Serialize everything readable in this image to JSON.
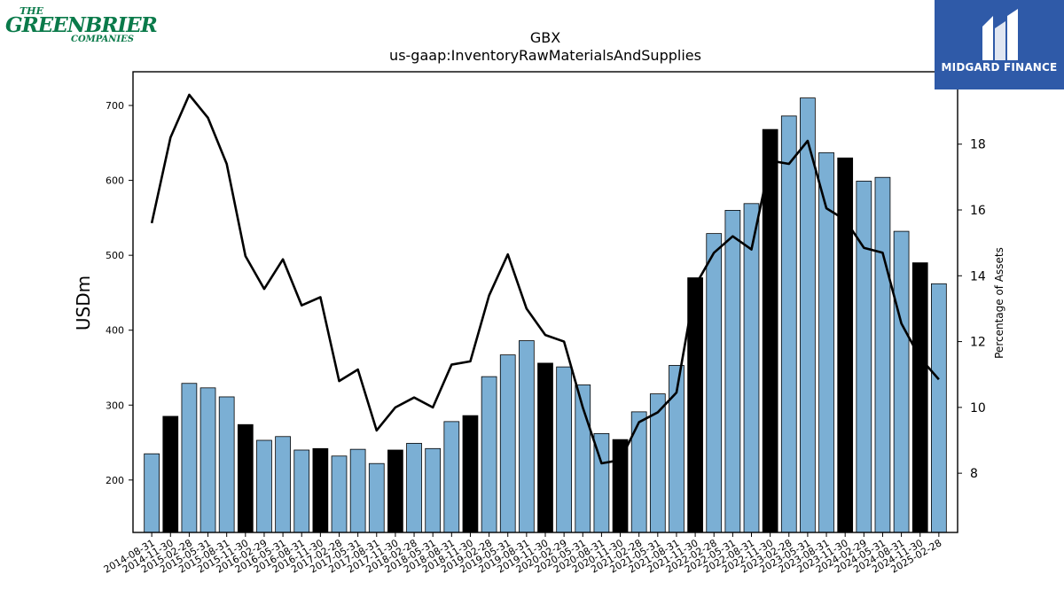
{
  "logos": {
    "left": {
      "the": "THE",
      "main": "GREENBRIER",
      "sub": "COMPANIES"
    },
    "right": {
      "text": "MIDGARD FINANCE",
      "bg": "#2f5aa8"
    }
  },
  "chart_data": {
    "type": "bar",
    "title": "GBX",
    "subtitle": "us-gaap:InventoryRawMaterialsAndSupplies",
    "ylabel": "USDm",
    "y2label": "Percentage of Assets",
    "ylim": [
      130,
      745
    ],
    "y2lim": [
      6.2,
      20.2
    ],
    "yticks": [
      200,
      300,
      400,
      500,
      600,
      700
    ],
    "y2ticks": [
      8,
      10,
      12,
      14,
      16,
      18
    ],
    "colors": {
      "bar": "#7bafd4",
      "highlight": "#000000",
      "line": "#000000"
    },
    "categories": [
      "2014-08-31",
      "2014-11-30",
      "2015-02-28",
      "2015-05-31",
      "2015-08-31",
      "2015-11-30",
      "2016-02-29",
      "2016-05-31",
      "2016-08-31",
      "2016-11-30",
      "2017-02-28",
      "2017-05-31",
      "2017-08-31",
      "2017-11-30",
      "2018-02-28",
      "2018-05-31",
      "2018-08-31",
      "2018-11-30",
      "2019-02-28",
      "2019-05-31",
      "2019-08-31",
      "2019-11-30",
      "2020-02-29",
      "2020-05-31",
      "2020-08-31",
      "2020-11-30",
      "2021-02-28",
      "2021-05-31",
      "2021-08-31",
      "2021-11-30",
      "2022-02-28",
      "2022-05-31",
      "2022-08-31",
      "2022-11-30",
      "2023-02-28",
      "2023-05-31",
      "2023-08-31",
      "2023-11-30",
      "2024-02-29",
      "2024-05-31",
      "2024-08-31",
      "2024-11-30",
      "2025-02-28"
    ],
    "series": [
      {
        "values": [
          235,
          285,
          329,
          323,
          311,
          274,
          253,
          258,
          240,
          242,
          232,
          241,
          222,
          240,
          249,
          242,
          278,
          286,
          338,
          367,
          386,
          356,
          351,
          327,
          262,
          254,
          291,
          315,
          353,
          470,
          529,
          560,
          569,
          668,
          686,
          710,
          637,
          630,
          599,
          604,
          532,
          490,
          462
        ],
        "highlight": [
          false,
          true,
          false,
          false,
          false,
          true,
          false,
          false,
          false,
          true,
          false,
          false,
          false,
          true,
          false,
          false,
          false,
          true,
          false,
          false,
          false,
          true,
          false,
          false,
          false,
          true,
          false,
          false,
          false,
          true,
          false,
          false,
          false,
          true,
          false,
          false,
          false,
          true,
          false,
          false,
          false,
          true,
          false
        ]
      },
      {
        "axis": "right",
        "type": "line",
        "values": [
          15.6,
          18.2,
          19.5,
          18.8,
          17.4,
          14.6,
          13.6,
          14.5,
          13.1,
          13.35,
          10.8,
          11.15,
          9.3,
          10.0,
          10.3,
          10.0,
          11.3,
          11.4,
          13.4,
          14.65,
          13.0,
          12.2,
          12.0,
          10.0,
          8.3,
          8.4,
          9.55,
          9.85,
          10.45,
          13.7,
          14.7,
          15.2,
          14.8,
          17.5,
          17.4,
          18.1,
          16.05,
          15.7,
          14.85,
          14.7,
          12.55,
          11.5,
          10.85
        ]
      }
    ]
  }
}
